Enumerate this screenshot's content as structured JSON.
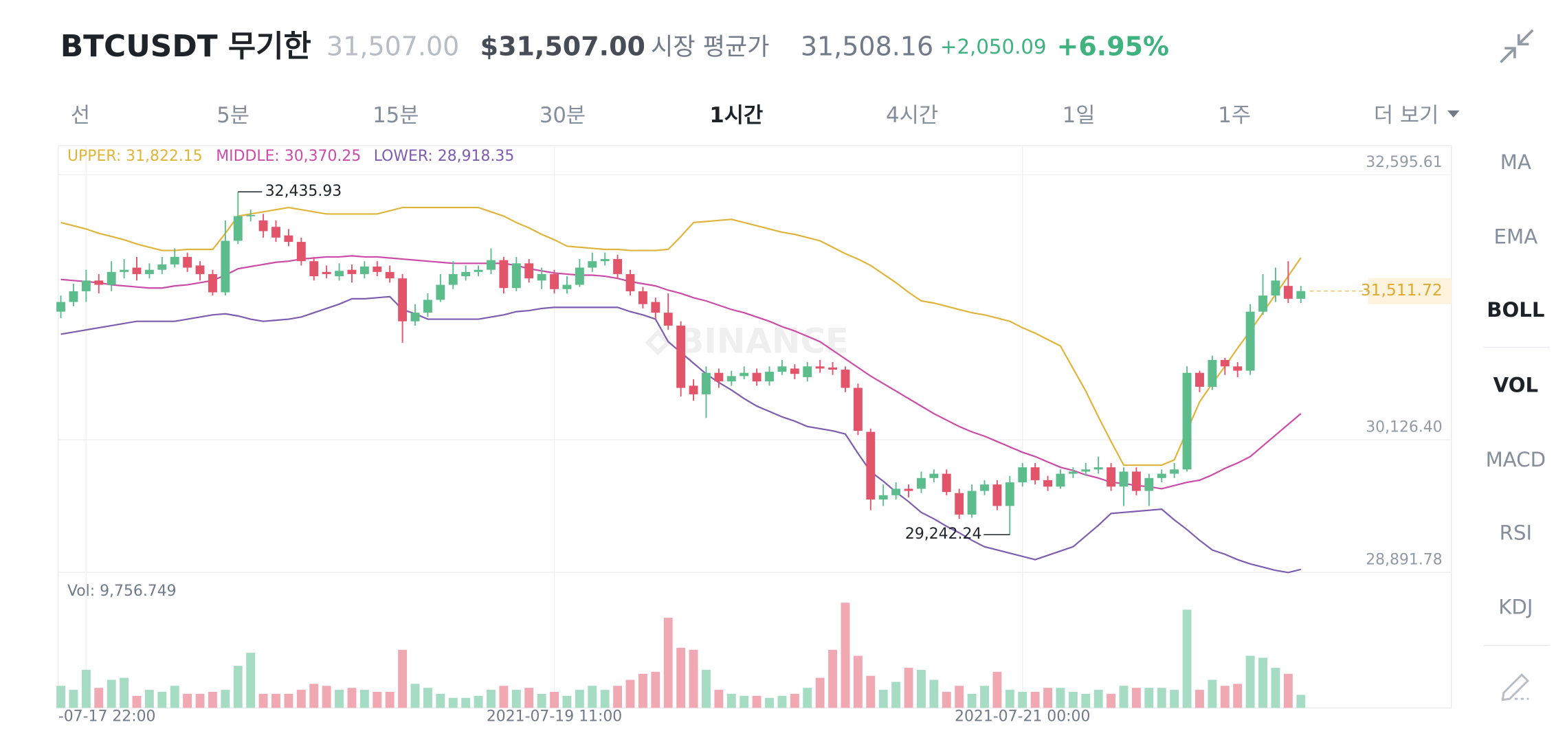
{
  "header": {
    "symbol": "BTCUSDT 무기한",
    "last_price": "31,507.00",
    "usd_price": "$31,507.00",
    "mark_label": "시장 평균가",
    "mark_price": "31,508.16",
    "change": "+2,050.09",
    "change_pct": "+6.95%"
  },
  "intervals": [
    "선",
    "5분",
    "15분",
    "30분",
    "1시간",
    "4시간",
    "1일",
    "1주",
    "더 보기"
  ],
  "active_interval": 4,
  "indicators": [
    "MA",
    "EMA",
    "BOLL",
    "VOL",
    "MACD",
    "RSI",
    "KDJ"
  ],
  "active_indicators": [
    2,
    3
  ],
  "chart_data": {
    "type": "candlestick",
    "watermark": "BINANCE",
    "up_color": "#5cbc8c",
    "down_color": "#e2546a",
    "ylim": [
      28891.78,
      32867
    ],
    "yticks": [
      {
        "value": 32595.61,
        "label": "32,595.61"
      },
      {
        "value": 30126.4,
        "label": "30,126.40"
      },
      {
        "value": 28891.78,
        "label": "28,891.78"
      }
    ],
    "xlim": [
      -0.2,
      109.9
    ],
    "xticks": [
      {
        "value": 2,
        "label": "-07-17 22:00"
      },
      {
        "value": 39,
        "label": "2021-07-19 11:00"
      },
      {
        "value": 76,
        "label": "2021-07-21 00:00"
      }
    ],
    "grid": true,
    "ohlc": [
      [
        31320,
        31470,
        31260,
        31410
      ],
      [
        31410,
        31580,
        31370,
        31510
      ],
      [
        31510,
        31710,
        31410,
        31610
      ],
      [
        31610,
        31670,
        31490,
        31570
      ],
      [
        31570,
        31790,
        31510,
        31690
      ],
      [
        31690,
        31810,
        31630,
        31710
      ],
      [
        31730,
        31830,
        31610,
        31670
      ],
      [
        31670,
        31770,
        31630,
        31710
      ],
      [
        31710,
        31830,
        31670,
        31760
      ],
      [
        31760,
        31910,
        31730,
        31830
      ],
      [
        31830,
        31870,
        31690,
        31730
      ],
      [
        31750,
        31790,
        31610,
        31670
      ],
      [
        31670,
        31710,
        31470,
        31500
      ],
      [
        31500,
        32170,
        31470,
        31980
      ],
      [
        31980,
        32435.93,
        31950,
        32210
      ],
      [
        32210,
        32270,
        32160,
        32220
      ],
      [
        32170,
        32230,
        32010,
        32070
      ],
      [
        32110,
        32170,
        31970,
        32010
      ],
      [
        32030,
        32090,
        31930,
        31970
      ],
      [
        31970,
        32010,
        31750,
        31790
      ],
      [
        31790,
        31830,
        31610,
        31650
      ],
      [
        31690,
        31750,
        31630,
        31670
      ],
      [
        31650,
        31770,
        31610,
        31700
      ],
      [
        31710,
        31760,
        31590,
        31670
      ],
      [
        31670,
        31790,
        31630,
        31740
      ],
      [
        31740,
        31790,
        31650,
        31690
      ],
      [
        31690,
        31750,
        31590,
        31630
      ],
      [
        31630,
        31670,
        31030,
        31230
      ],
      [
        31230,
        31390,
        31190,
        31310
      ],
      [
        31310,
        31490,
        31270,
        31430
      ],
      [
        31430,
        31670,
        31410,
        31570
      ],
      [
        31570,
        31790,
        31530,
        31670
      ],
      [
        31650,
        31750,
        31610,
        31690
      ],
      [
        31690,
        31750,
        31650,
        31710
      ],
      [
        31710,
        31910,
        31670,
        31800
      ],
      [
        31800,
        31830,
        31490,
        31540
      ],
      [
        31540,
        31830,
        31510,
        31770
      ],
      [
        31770,
        31810,
        31590,
        31630
      ],
      [
        31610,
        31730,
        31530,
        31670
      ],
      [
        31670,
        31710,
        31490,
        31530
      ],
      [
        31530,
        31650,
        31490,
        31570
      ],
      [
        31570,
        31810,
        31550,
        31730
      ],
      [
        31730,
        31870,
        31690,
        31790
      ],
      [
        31790,
        31870,
        31750,
        31810
      ],
      [
        31810,
        31850,
        31630,
        31670
      ],
      [
        31670,
        31710,
        31470,
        31510
      ],
      [
        31510,
        31550,
        31350,
        31390
      ],
      [
        31410,
        31450,
        31250,
        31310
      ],
      [
        31310,
        31490,
        31150,
        31190
      ],
      [
        31190,
        31230,
        30530,
        30610
      ],
      [
        30630,
        30690,
        30490,
        30550
      ],
      [
        30550,
        30810,
        30330,
        30750
      ],
      [
        30750,
        30790,
        30610,
        30670
      ],
      [
        30670,
        30770,
        30630,
        30720
      ],
      [
        30720,
        30810,
        30690,
        30750
      ],
      [
        30750,
        30790,
        30630,
        30670
      ],
      [
        30670,
        30810,
        30630,
        30760
      ],
      [
        30760,
        30870,
        30730,
        30810
      ],
      [
        30790,
        30830,
        30690,
        30740
      ],
      [
        30710,
        30850,
        30670,
        30810
      ],
      [
        30810,
        30870,
        30750,
        30790
      ],
      [
        30800,
        30850,
        30730,
        30780
      ],
      [
        30780,
        30810,
        30570,
        30610
      ],
      [
        30610,
        30650,
        30170,
        30210
      ],
      [
        30200,
        30230,
        29470,
        29570
      ],
      [
        29570,
        29710,
        29510,
        29610
      ],
      [
        29610,
        29730,
        29570,
        29670
      ],
      [
        29670,
        29710,
        29590,
        29650
      ],
      [
        29670,
        29830,
        29630,
        29770
      ],
      [
        29770,
        29850,
        29730,
        29810
      ],
      [
        29810,
        29850,
        29610,
        29640
      ],
      [
        29630,
        29670,
        29390,
        29430
      ],
      [
        29430,
        29710,
        29400,
        29650
      ],
      [
        29650,
        29750,
        29610,
        29710
      ],
      [
        29710,
        29750,
        29470,
        29510
      ],
      [
        29510,
        29790,
        29242.24,
        29730
      ],
      [
        29730,
        29910,
        29690,
        29870
      ],
      [
        29870,
        29910,
        29710,
        29750
      ],
      [
        29750,
        29790,
        29650,
        29690
      ],
      [
        29690,
        29850,
        29670,
        29810
      ],
      [
        29810,
        29870,
        29770,
        29830
      ],
      [
        29830,
        29910,
        29790,
        29850
      ],
      [
        29850,
        29970,
        29810,
        29870
      ],
      [
        29870,
        29910,
        29650,
        29690
      ],
      [
        29690,
        29870,
        29510,
        29830
      ],
      [
        29830,
        29870,
        29610,
        29650
      ],
      [
        29650,
        29810,
        29510,
        29770
      ],
      [
        29770,
        29850,
        29730,
        29810
      ],
      [
        29810,
        29910,
        29770,
        29850
      ],
      [
        29850,
        30810,
        29830,
        30750
      ],
      [
        30750,
        30770,
        30570,
        30620
      ],
      [
        30620,
        30910,
        30590,
        30870
      ],
      [
        30870,
        30890,
        30730,
        30810
      ],
      [
        30810,
        30850,
        30710,
        30770
      ],
      [
        30770,
        31390,
        30730,
        31320
      ],
      [
        31320,
        31670,
        31290,
        31470
      ],
      [
        31470,
        31730,
        31410,
        31610
      ],
      [
        31560,
        31790,
        31400,
        31440
      ],
      [
        31440,
        31560,
        31400,
        31511.72
      ]
    ],
    "high_label": {
      "candle": 14,
      "label": "32,435.93"
    },
    "low_label": {
      "candle": 75,
      "label": "29,242.24"
    },
    "last_price": {
      "value": 31511.72,
      "label": "31,511.72",
      "color": "#e0a82e"
    },
    "bands": [
      {
        "label": "UPPER: 31,822.15",
        "color": "#e0b43a",
        "values": [
          32150,
          32120,
          32090,
          32050,
          32020,
          31990,
          31950,
          31920,
          31890,
          31890,
          31900,
          31900,
          31900,
          32050,
          32210,
          32230,
          32250,
          32270,
          32290,
          32270,
          32250,
          32230,
          32230,
          32230,
          32230,
          32230,
          32260,
          32290,
          32290,
          32290,
          32290,
          32290,
          32290,
          32290,
          32250,
          32210,
          32150,
          32100,
          32040,
          31990,
          31930,
          31920,
          31910,
          31900,
          31900,
          31890,
          31890,
          31890,
          31900,
          32020,
          32150,
          32160,
          32170,
          32180,
          32150,
          32120,
          32090,
          32060,
          32040,
          32010,
          31980,
          31920,
          31860,
          31810,
          31750,
          31670,
          31590,
          31500,
          31420,
          31400,
          31370,
          31340,
          31310,
          31290,
          31260,
          31230,
          31170,
          31120,
          31060,
          31000,
          30790,
          30580,
          30340,
          30110,
          29890,
          29890,
          29890,
          29890,
          29940,
          30210,
          30480,
          30650,
          30810,
          30980,
          31140,
          31310,
          31480,
          31650,
          31822.15
        ]
      },
      {
        "label": "MIDDLE: 30,370.25",
        "color": "#cc4aa8",
        "values": [
          31620,
          31610,
          31600,
          31590,
          31570,
          31560,
          31550,
          31540,
          31540,
          31560,
          31570,
          31590,
          31610,
          31660,
          31720,
          31740,
          31760,
          31780,
          31790,
          31810,
          31820,
          31830,
          31830,
          31840,
          31830,
          31830,
          31820,
          31810,
          31800,
          31790,
          31780,
          31770,
          31770,
          31770,
          31770,
          31770,
          31750,
          31720,
          31700,
          31680,
          31670,
          31660,
          31660,
          31650,
          31630,
          31600,
          31580,
          31560,
          31520,
          31490,
          31450,
          31420,
          31380,
          31340,
          31310,
          31270,
          31230,
          31180,
          31140,
          31090,
          31040,
          30960,
          30880,
          30800,
          30720,
          30650,
          30580,
          30510,
          30440,
          30370,
          30310,
          30250,
          30200,
          30160,
          30110,
          30060,
          30010,
          29970,
          29920,
          29870,
          29840,
          29800,
          29770,
          29730,
          29720,
          29700,
          29690,
          29670,
          29700,
          29730,
          29750,
          29800,
          29860,
          29910,
          29970,
          30070,
          30170,
          30270,
          30370.25
        ]
      },
      {
        "label": "LOWER: 28,918.35",
        "color": "#7e5cb0",
        "values": [
          31110,
          31130,
          31150,
          31170,
          31190,
          31210,
          31230,
          31230,
          31230,
          31230,
          31250,
          31270,
          31290,
          31300,
          31280,
          31250,
          31230,
          31240,
          31250,
          31270,
          31310,
          31350,
          31390,
          31440,
          31440,
          31450,
          31460,
          31340,
          31300,
          31250,
          31250,
          31250,
          31250,
          31250,
          31270,
          31290,
          31320,
          31330,
          31350,
          31360,
          31360,
          31360,
          31360,
          31360,
          31360,
          31320,
          31290,
          31250,
          31040,
          30940,
          30840,
          30740,
          30660,
          30590,
          30510,
          30440,
          30390,
          30340,
          30300,
          30250,
          30230,
          30210,
          30180,
          30000,
          29830,
          29740,
          29640,
          29550,
          29450,
          29390,
          29320,
          29260,
          29190,
          29130,
          29100,
          29070,
          29040,
          29010,
          29050,
          29090,
          29130,
          29230,
          29330,
          29440,
          29450,
          29460,
          29470,
          29480,
          29380,
          29290,
          29190,
          29100,
          29060,
          29010,
          28970,
          28940,
          28910,
          28890,
          28918.35
        ]
      }
    ],
    "volume": {
      "label": "Vol: 9,756.749",
      "up_color": "#a5dcc3",
      "down_color": "#f0a8b3",
      "ylim": [
        0,
        100000
      ],
      "values": [
        16500,
        13500,
        28500,
        15000,
        21000,
        22500,
        9000,
        13500,
        12000,
        16500,
        10500,
        10500,
        12000,
        13500,
        31500,
        41250,
        10500,
        10500,
        10500,
        13500,
        18000,
        16500,
        13500,
        15000,
        13500,
        12000,
        12000,
        43500,
        18000,
        15000,
        10500,
        7500,
        7500,
        9000,
        13500,
        16500,
        13500,
        15000,
        10500,
        12000,
        9000,
        13500,
        16500,
        13500,
        16500,
        21000,
        25500,
        27000,
        67500,
        45000,
        43500,
        28500,
        13500,
        10500,
        9000,
        9000,
        7500,
        9000,
        10500,
        15000,
        22500,
        43500,
        78750,
        39000,
        24000,
        13500,
        19500,
        30000,
        28500,
        21000,
        12000,
        16500,
        10500,
        16500,
        27000,
        13500,
        12000,
        12000,
        15000,
        15000,
        12000,
        10500,
        13500,
        10500,
        16500,
        15000,
        15000,
        15000,
        13500,
        73500,
        13500,
        21000,
        16500,
        18000,
        39000,
        37500,
        30000,
        25500,
        9756.749
      ]
    }
  }
}
